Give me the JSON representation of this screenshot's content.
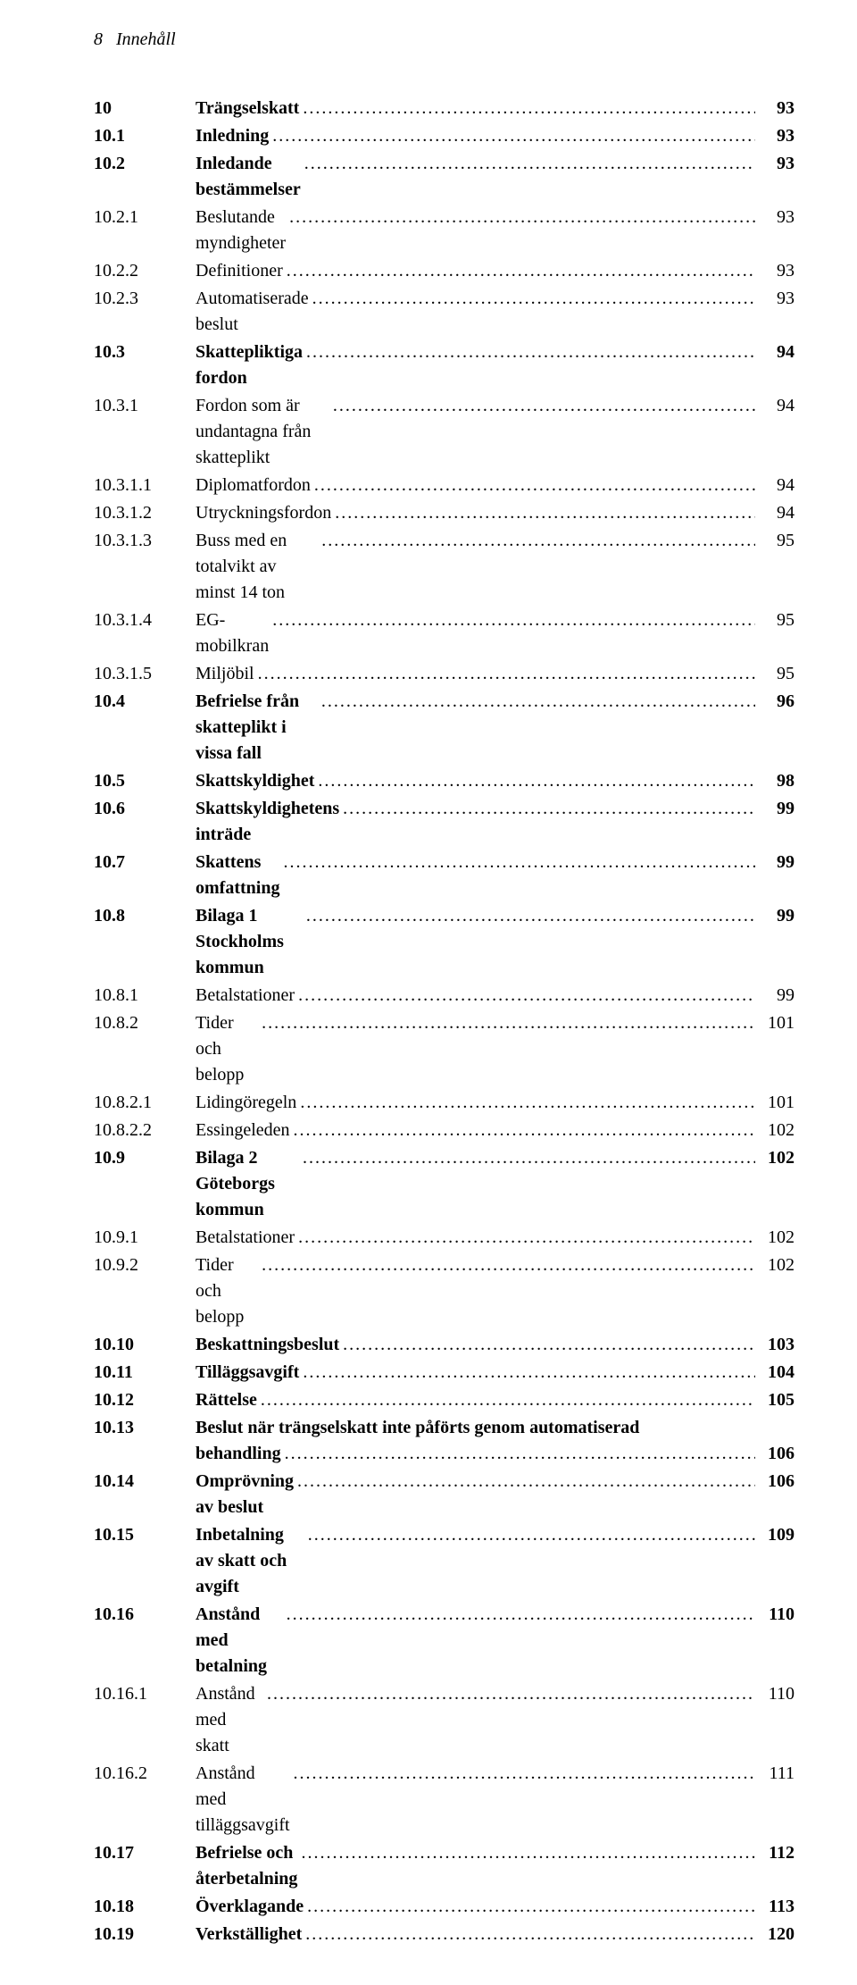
{
  "header": {
    "pageNumber": "8",
    "title": "Innehåll"
  },
  "dots": ".........................................................................................................................................................",
  "toc": [
    {
      "num": "10",
      "title": "Trängselskatt",
      "page": "93",
      "bold": true,
      "spacer": true
    },
    {
      "num": "10.1",
      "title": "Inledning",
      "page": "93",
      "bold": true,
      "spacer": false
    },
    {
      "num": "10.2",
      "title": "Inledande bestämmelser",
      "page": "93",
      "bold": true,
      "spacer": false
    },
    {
      "num": "10.2.1",
      "title": "Beslutande myndigheter",
      "page": "93",
      "bold": false,
      "spacer": false
    },
    {
      "num": "10.2.2",
      "title": "Definitioner",
      "page": "93",
      "bold": false,
      "spacer": false
    },
    {
      "num": "10.2.3",
      "title": "Automatiserade beslut",
      "page": "93",
      "bold": false,
      "spacer": false
    },
    {
      "num": "10.3",
      "title": "Skattepliktiga fordon",
      "page": "94",
      "bold": true,
      "spacer": false
    },
    {
      "num": "10.3.1",
      "title": "Fordon som är undantagna från skatteplikt",
      "page": "94",
      "bold": false,
      "spacer": false
    },
    {
      "num": "10.3.1.1",
      "title": "Diplomatfordon",
      "page": "94",
      "bold": false,
      "spacer": false
    },
    {
      "num": "10.3.1.2",
      "title": "Utryckningsfordon",
      "page": "94",
      "bold": false,
      "spacer": false
    },
    {
      "num": "10.3.1.3",
      "title": "Buss med en totalvikt av minst 14 ton",
      "page": "95",
      "bold": false,
      "spacer": false
    },
    {
      "num": "10.3.1.4",
      "title": "EG-mobilkran",
      "page": "95",
      "bold": false,
      "spacer": false
    },
    {
      "num": "10.3.1.5",
      "title": "Miljöbil",
      "page": "95",
      "bold": false,
      "spacer": false
    },
    {
      "num": "10.4",
      "title": "Befrielse från skatteplikt i vissa fall",
      "page": "96",
      "bold": true,
      "spacer": false
    },
    {
      "num": "10.5",
      "title": "Skattskyldighet",
      "page": "98",
      "bold": true,
      "spacer": false
    },
    {
      "num": "10.6",
      "title": "Skattskyldighetens inträde",
      "page": "99",
      "bold": true,
      "spacer": false
    },
    {
      "num": "10.7",
      "title": "Skattens omfattning",
      "page": "99",
      "bold": true,
      "spacer": false
    },
    {
      "num": "10.8",
      "title": "Bilaga 1 Stockholms kommun",
      "page": "99",
      "bold": true,
      "spacer": false
    },
    {
      "num": "10.8.1",
      "title": "Betalstationer",
      "page": "99",
      "bold": false,
      "spacer": false
    },
    {
      "num": "10.8.2",
      "title": "Tider och belopp",
      "page": "101",
      "bold": false,
      "spacer": false
    },
    {
      "num": "10.8.2.1",
      "title": "Lidingöregeln",
      "page": "101",
      "bold": false,
      "spacer": false
    },
    {
      "num": "10.8.2.2",
      "title": "Essingeleden",
      "page": "102",
      "bold": false,
      "spacer": false
    },
    {
      "num": "10.9",
      "title": "Bilaga 2 Göteborgs kommun",
      "page": "102",
      "bold": true,
      "spacer": false
    },
    {
      "num": "10.9.1",
      "title": "Betalstationer",
      "page": "102",
      "bold": false,
      "spacer": false
    },
    {
      "num": "10.9.2",
      "title": "Tider och belopp",
      "page": "102",
      "bold": false,
      "spacer": false
    },
    {
      "num": "10.10",
      "title": "Beskattningsbeslut",
      "page": "103",
      "bold": true,
      "spacer": false
    },
    {
      "num": "10.11",
      "title": "Tilläggsavgift",
      "page": "104",
      "bold": true,
      "spacer": false
    },
    {
      "num": "10.12",
      "title": "Rättelse",
      "page": "105",
      "bold": true,
      "spacer": false
    },
    {
      "num": "10.13",
      "title_line1": "Beslut när trängselskatt inte påförts genom automatiserad",
      "title_line2": "behandling",
      "page": "106",
      "bold": true,
      "spacer": false,
      "multiline": true
    },
    {
      "num": "10.14",
      "title": "Omprövning av beslut",
      "page": "106",
      "bold": true,
      "spacer": false
    },
    {
      "num": "10.15",
      "title": "Inbetalning av skatt och avgift",
      "page": "109",
      "bold": true,
      "spacer": false
    },
    {
      "num": "10.16",
      "title": "Anstånd med betalning",
      "page": "110",
      "bold": true,
      "spacer": false
    },
    {
      "num": "10.16.1",
      "title": "Anstånd med skatt",
      "page": "110",
      "bold": false,
      "spacer": false
    },
    {
      "num": "10.16.2",
      "title": "Anstånd med tilläggsavgift",
      "page": "111",
      "bold": false,
      "spacer": false
    },
    {
      "num": "10.17",
      "title": "Befrielse och återbetalning",
      "page": "112",
      "bold": true,
      "spacer": false
    },
    {
      "num": "10.18",
      "title": "Överklagande",
      "page": "113",
      "bold": true,
      "spacer": false
    },
    {
      "num": "10.19",
      "title": "Verkställighet",
      "page": "120",
      "bold": true,
      "spacer": false
    }
  ]
}
